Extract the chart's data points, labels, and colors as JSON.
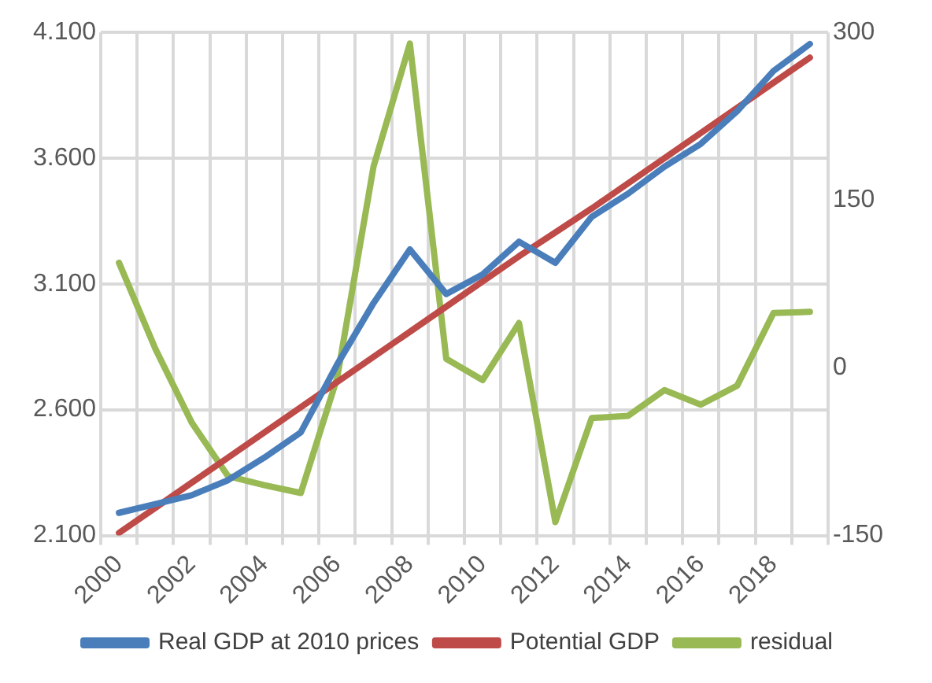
{
  "chart_data": {
    "type": "line",
    "categories": [
      "2000",
      null,
      "2002",
      null,
      "2004",
      null,
      "2006",
      null,
      "2008",
      null,
      "2010",
      null,
      "2012",
      null,
      "2014",
      null,
      "2016",
      null,
      "2018",
      null
    ],
    "series": [
      {
        "name": "Real GDP at 2010 prices",
        "color": "#4a7ebb",
        "values": [
          2190,
          2225,
          2260,
          2320,
          2410,
          2510,
          2780,
          3024,
          3237,
          3060,
          3138,
          3268,
          3184,
          3367,
          3459,
          3566,
          3657,
          3787,
          3947,
          4054
        ]
      },
      {
        "name": "Potential GDP",
        "color": "#be4b48",
        "values": [
          2110,
          2210,
          2310,
          2410,
          2510,
          2610,
          2710,
          2810,
          2910,
          3010,
          3110,
          3210,
          3305,
          3400,
          3500,
          3600,
          3700,
          3800,
          3900,
          4000
        ]
      },
      {
        "name": "residual",
        "color": "#98b954",
        "axis": "y2",
        "values": [
          94,
          17,
          -49,
          -97,
          -105,
          -112,
          -9,
          180,
          290,
          8,
          -11,
          40,
          -138,
          -45,
          -43,
          -20,
          -33,
          -16,
          49,
          50
        ]
      }
    ],
    "ylim": [
      2100,
      4100
    ],
    "yticks": [
      {
        "value": 2100,
        "label": "2.100"
      },
      {
        "value": 2600,
        "label": "2.600"
      },
      {
        "value": 3100,
        "label": "3.100"
      },
      {
        "value": 3600,
        "label": "3.600"
      },
      {
        "value": 4100,
        "label": "4.100"
      }
    ],
    "y2lim": [
      -150,
      300
    ],
    "y2ticks": [
      -150,
      0,
      150,
      300
    ],
    "grid": true,
    "legend": "bottom",
    "marker": "none",
    "line_style": "solid"
  }
}
